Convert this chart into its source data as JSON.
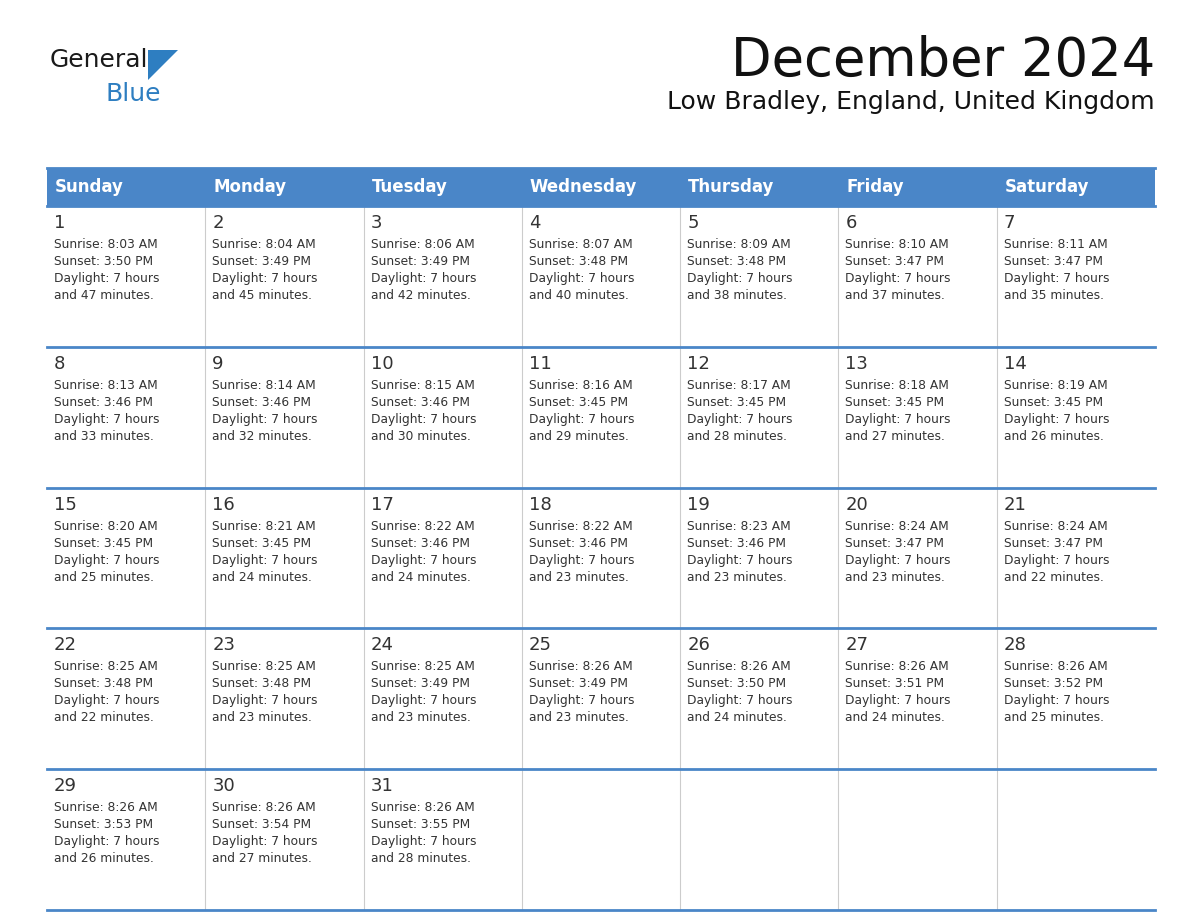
{
  "title": "December 2024",
  "subtitle": "Low Bradley, England, United Kingdom",
  "header_color": "#4a86c8",
  "header_text_color": "#ffffff",
  "border_color": "#4a86c8",
  "cell_line_color": "#cccccc",
  "cell_bg_color": "#ffffff",
  "text_color": "#333333",
  "day_headers": [
    "Sunday",
    "Monday",
    "Tuesday",
    "Wednesday",
    "Thursday",
    "Friday",
    "Saturday"
  ],
  "weeks": [
    [
      {
        "day": 1,
        "sunrise": "8:03 AM",
        "sunset": "3:50 PM",
        "daylight": "7 hours and 47 minutes."
      },
      {
        "day": 2,
        "sunrise": "8:04 AM",
        "sunset": "3:49 PM",
        "daylight": "7 hours and 45 minutes."
      },
      {
        "day": 3,
        "sunrise": "8:06 AM",
        "sunset": "3:49 PM",
        "daylight": "7 hours and 42 minutes."
      },
      {
        "day": 4,
        "sunrise": "8:07 AM",
        "sunset": "3:48 PM",
        "daylight": "7 hours and 40 minutes."
      },
      {
        "day": 5,
        "sunrise": "8:09 AM",
        "sunset": "3:48 PM",
        "daylight": "7 hours and 38 minutes."
      },
      {
        "day": 6,
        "sunrise": "8:10 AM",
        "sunset": "3:47 PM",
        "daylight": "7 hours and 37 minutes."
      },
      {
        "day": 7,
        "sunrise": "8:11 AM",
        "sunset": "3:47 PM",
        "daylight": "7 hours and 35 minutes."
      }
    ],
    [
      {
        "day": 8,
        "sunrise": "8:13 AM",
        "sunset": "3:46 PM",
        "daylight": "7 hours and 33 minutes."
      },
      {
        "day": 9,
        "sunrise": "8:14 AM",
        "sunset": "3:46 PM",
        "daylight": "7 hours and 32 minutes."
      },
      {
        "day": 10,
        "sunrise": "8:15 AM",
        "sunset": "3:46 PM",
        "daylight": "7 hours and 30 minutes."
      },
      {
        "day": 11,
        "sunrise": "8:16 AM",
        "sunset": "3:45 PM",
        "daylight": "7 hours and 29 minutes."
      },
      {
        "day": 12,
        "sunrise": "8:17 AM",
        "sunset": "3:45 PM",
        "daylight": "7 hours and 28 minutes."
      },
      {
        "day": 13,
        "sunrise": "8:18 AM",
        "sunset": "3:45 PM",
        "daylight": "7 hours and 27 minutes."
      },
      {
        "day": 14,
        "sunrise": "8:19 AM",
        "sunset": "3:45 PM",
        "daylight": "7 hours and 26 minutes."
      }
    ],
    [
      {
        "day": 15,
        "sunrise": "8:20 AM",
        "sunset": "3:45 PM",
        "daylight": "7 hours and 25 minutes."
      },
      {
        "day": 16,
        "sunrise": "8:21 AM",
        "sunset": "3:45 PM",
        "daylight": "7 hours and 24 minutes."
      },
      {
        "day": 17,
        "sunrise": "8:22 AM",
        "sunset": "3:46 PM",
        "daylight": "7 hours and 24 minutes."
      },
      {
        "day": 18,
        "sunrise": "8:22 AM",
        "sunset": "3:46 PM",
        "daylight": "7 hours and 23 minutes."
      },
      {
        "day": 19,
        "sunrise": "8:23 AM",
        "sunset": "3:46 PM",
        "daylight": "7 hours and 23 minutes."
      },
      {
        "day": 20,
        "sunrise": "8:24 AM",
        "sunset": "3:47 PM",
        "daylight": "7 hours and 23 minutes."
      },
      {
        "day": 21,
        "sunrise": "8:24 AM",
        "sunset": "3:47 PM",
        "daylight": "7 hours and 22 minutes."
      }
    ],
    [
      {
        "day": 22,
        "sunrise": "8:25 AM",
        "sunset": "3:48 PM",
        "daylight": "7 hours and 22 minutes."
      },
      {
        "day": 23,
        "sunrise": "8:25 AM",
        "sunset": "3:48 PM",
        "daylight": "7 hours and 23 minutes."
      },
      {
        "day": 24,
        "sunrise": "8:25 AM",
        "sunset": "3:49 PM",
        "daylight": "7 hours and 23 minutes."
      },
      {
        "day": 25,
        "sunrise": "8:26 AM",
        "sunset": "3:49 PM",
        "daylight": "7 hours and 23 minutes."
      },
      {
        "day": 26,
        "sunrise": "8:26 AM",
        "sunset": "3:50 PM",
        "daylight": "7 hours and 24 minutes."
      },
      {
        "day": 27,
        "sunrise": "8:26 AM",
        "sunset": "3:51 PM",
        "daylight": "7 hours and 24 minutes."
      },
      {
        "day": 28,
        "sunrise": "8:26 AM",
        "sunset": "3:52 PM",
        "daylight": "7 hours and 25 minutes."
      }
    ],
    [
      {
        "day": 29,
        "sunrise": "8:26 AM",
        "sunset": "3:53 PM",
        "daylight": "7 hours and 26 minutes."
      },
      {
        "day": 30,
        "sunrise": "8:26 AM",
        "sunset": "3:54 PM",
        "daylight": "7 hours and 27 minutes."
      },
      {
        "day": 31,
        "sunrise": "8:26 AM",
        "sunset": "3:55 PM",
        "daylight": "7 hours and 28 minutes."
      },
      null,
      null,
      null,
      null
    ]
  ],
  "logo_color1": "#1a1a1a",
  "logo_color2": "#2e7ec1",
  "logo_triangle_color": "#2e7ec1"
}
